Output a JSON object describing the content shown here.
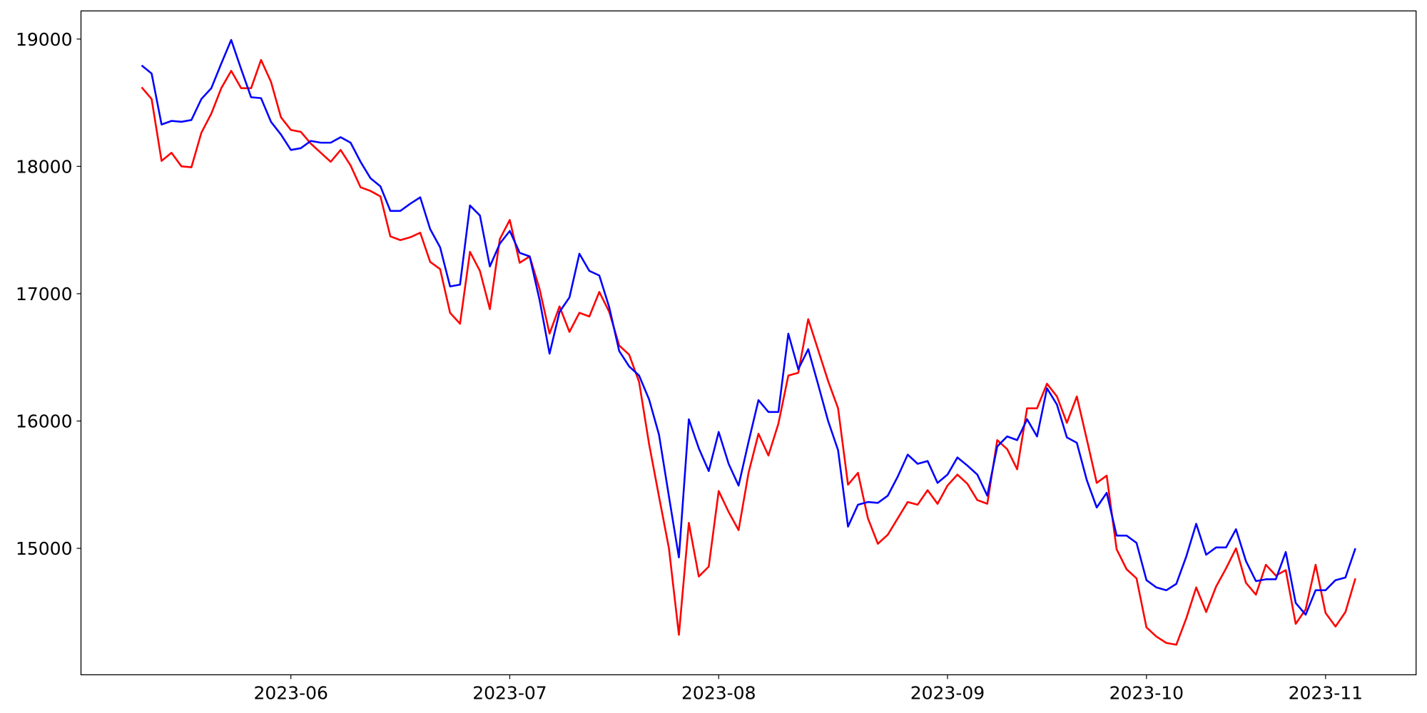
{
  "chart_data": {
    "type": "line",
    "categories": [
      null,
      null,
      null,
      null,
      null,
      null,
      null,
      null,
      null,
      null,
      null,
      null,
      null,
      null,
      null,
      "2023-06",
      null,
      null,
      null,
      null,
      null,
      null,
      null,
      null,
      null,
      null,
      null,
      null,
      null,
      null,
      null,
      null,
      null,
      null,
      null,
      null,
      null,
      "2023-07",
      null,
      null,
      null,
      null,
      null,
      null,
      null,
      null,
      null,
      null,
      null,
      null,
      null,
      null,
      null,
      null,
      null,
      null,
      null,
      null,
      "2023-08",
      null,
      null,
      null,
      null,
      null,
      null,
      null,
      null,
      null,
      null,
      null,
      null,
      null,
      null,
      null,
      null,
      null,
      null,
      null,
      null,
      null,
      null,
      "2023-09",
      null,
      null,
      null,
      null,
      null,
      null,
      null,
      null,
      null,
      null,
      null,
      null,
      null,
      null,
      null,
      null,
      null,
      null,
      null,
      "2023-10",
      null,
      null,
      null,
      null,
      null,
      null,
      null,
      null,
      null,
      null,
      null,
      null,
      null,
      null,
      null,
      null,
      null,
      "2023-11",
      null,
      null,
      null
    ],
    "series": [
      {
        "color": "#ff0000",
        "values": [
          18621,
          18529,
          18043,
          18107,
          18000,
          17993,
          18264,
          18414,
          18614,
          18750,
          18614,
          18614,
          18836,
          18664,
          18386,
          18286,
          18271,
          18179,
          18107,
          18036,
          18129,
          18007,
          17836,
          17807,
          17764,
          17450,
          17421,
          17443,
          17479,
          17250,
          17193,
          16850,
          16764,
          17329,
          17179,
          16879,
          17429,
          17579,
          17243,
          17293,
          17036,
          16686,
          16900,
          16700,
          16850,
          16821,
          17014,
          16857,
          16593,
          16521,
          16307,
          15821,
          15407,
          15000,
          14321,
          15200,
          14779,
          14857,
          15450,
          15286,
          15143,
          15593,
          15900,
          15729,
          15979,
          16357,
          16379,
          16800,
          16557,
          16314,
          16100,
          15500,
          15593,
          15236,
          15036,
          15107,
          15236,
          15364,
          15343,
          15457,
          15350,
          15493,
          15579,
          15507,
          15379,
          15350,
          15850,
          15779,
          15621,
          16100,
          16100,
          16293,
          16193,
          15986,
          16193,
          15857,
          15514,
          15571,
          14993,
          14836,
          14764,
          14379,
          14307,
          14257,
          14243,
          14450,
          14693,
          14500,
          14700,
          14843,
          15000,
          14729,
          14636,
          14871,
          14786,
          14829,
          14407,
          14521,
          14871,
          14493,
          14386,
          14500,
          14764
        ]
      },
      {
        "color": "#0000ff",
        "values": [
          18793,
          18729,
          18329,
          18357,
          18350,
          18364,
          18529,
          18614,
          18807,
          18993,
          18764,
          18543,
          18536,
          18350,
          18250,
          18129,
          18143,
          18200,
          18186,
          18186,
          18229,
          18186,
          18036,
          17907,
          17843,
          17650,
          17650,
          17707,
          17757,
          17507,
          17364,
          17057,
          17071,
          17693,
          17614,
          17214,
          17393,
          17493,
          17321,
          17293,
          16950,
          16529,
          16857,
          16971,
          17314,
          17179,
          17143,
          16893,
          16550,
          16429,
          16357,
          16171,
          15893,
          15407,
          14929,
          16014,
          15786,
          15607,
          15914,
          15664,
          15493,
          15836,
          16164,
          16071,
          16071,
          16686,
          16407,
          16564,
          16286,
          16000,
          15771,
          15171,
          15343,
          15364,
          15357,
          15414,
          15564,
          15736,
          15664,
          15686,
          15514,
          15579,
          15714,
          15650,
          15579,
          15414,
          15800,
          15879,
          15850,
          16014,
          15879,
          16257,
          16129,
          15871,
          15829,
          15536,
          15321,
          15436,
          15100,
          15100,
          15043,
          14750,
          14693,
          14671,
          14721,
          14936,
          15193,
          14950,
          15007,
          15007,
          15150,
          14900,
          14743,
          14757,
          14757,
          14971,
          14571,
          14479,
          14671,
          14671,
          14750,
          14771,
          15000
        ]
      }
    ],
    "ylim": [
      14007,
      19221
    ],
    "yticks": [
      15000,
      16000,
      17000,
      18000,
      19000
    ],
    "grid": false
  }
}
